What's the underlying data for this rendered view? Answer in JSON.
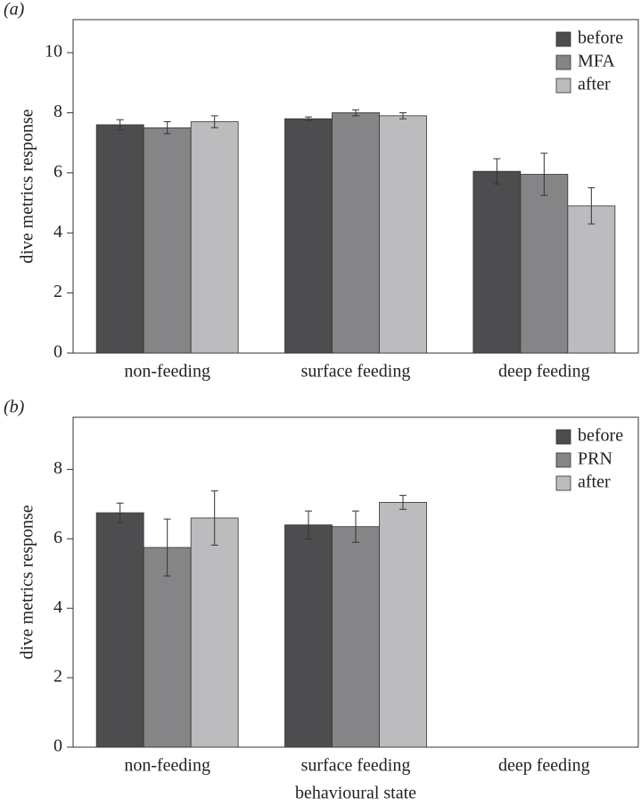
{
  "chart_data": [
    {
      "type": "bar",
      "label": "(a)",
      "ylabel": "dive metrics response",
      "categories": [
        "non-feeding",
        "surface feeding",
        "deep feeding"
      ],
      "series": [
        {
          "name": "before",
          "color": "#4d4d4f",
          "values": [
            7.6,
            7.8,
            6.05
          ],
          "errors": [
            0.17,
            0.06,
            0.42
          ]
        },
        {
          "name": "MFA",
          "color": "#858587",
          "values": [
            7.5,
            8.0,
            5.95
          ],
          "errors": [
            0.2,
            0.1,
            0.7
          ]
        },
        {
          "name": "after",
          "color": "#bcbcbe",
          "values": [
            7.7,
            7.9,
            4.9
          ],
          "errors": [
            0.2,
            0.1,
            0.6
          ]
        }
      ],
      "ylim": [
        0,
        11.1
      ],
      "yticks": [
        0,
        2,
        4,
        6,
        8,
        10
      ],
      "legend": "top-right"
    },
    {
      "type": "bar",
      "label": "(b)",
      "ylabel": "dive metrics response",
      "xlabel": "behavioural state",
      "categories": [
        "non-feeding",
        "surface feeding",
        "deep feeding"
      ],
      "series": [
        {
          "name": "before",
          "color": "#4d4d4f",
          "values": [
            6.75,
            6.4,
            null
          ],
          "errors": [
            0.28,
            0.4,
            null
          ]
        },
        {
          "name": "PRN",
          "color": "#858587",
          "values": [
            5.75,
            6.35,
            null
          ],
          "errors": [
            0.82,
            0.45,
            null
          ]
        },
        {
          "name": "after",
          "color": "#bcbcbe",
          "values": [
            6.6,
            7.05,
            null
          ],
          "errors": [
            0.78,
            0.2,
            null
          ]
        }
      ],
      "ylim": [
        0,
        9.5
      ],
      "yticks": [
        0,
        2,
        4,
        6,
        8
      ],
      "legend": "top-right"
    }
  ]
}
